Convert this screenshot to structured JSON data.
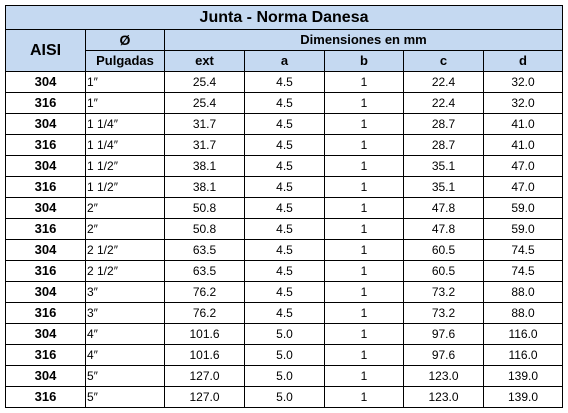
{
  "title": "Junta - Norma Danesa",
  "headers": {
    "aisi": "AISI",
    "phi": "Ø",
    "pulgadas": "Pulgadas",
    "dimensiones": "Dimensiones en mm",
    "ext": "ext",
    "a": "a",
    "b": "b",
    "c": "c",
    "d": "d"
  },
  "colors": {
    "header_background": "#c5d9f1",
    "border": "#000000"
  },
  "rows": [
    {
      "aisi": "304",
      "pulgadas": "1″",
      "ext": "25.4",
      "a": "4.5",
      "b": "1",
      "c": "22.4",
      "d": "32.0"
    },
    {
      "aisi": "316",
      "pulgadas": "1″",
      "ext": "25.4",
      "a": "4.5",
      "b": "1",
      "c": "22.4",
      "d": "32.0"
    },
    {
      "aisi": "304",
      "pulgadas": "1 1/4″",
      "ext": "31.7",
      "a": "4.5",
      "b": "1",
      "c": "28.7",
      "d": "41.0"
    },
    {
      "aisi": "316",
      "pulgadas": "1 1/4″",
      "ext": "31.7",
      "a": "4.5",
      "b": "1",
      "c": "28.7",
      "d": "41.0"
    },
    {
      "aisi": "304",
      "pulgadas": "1 1/2″",
      "ext": "38.1",
      "a": "4.5",
      "b": "1",
      "c": "35.1",
      "d": "47.0"
    },
    {
      "aisi": "316",
      "pulgadas": "1 1/2″",
      "ext": "38.1",
      "a": "4.5",
      "b": "1",
      "c": "35.1",
      "d": "47.0"
    },
    {
      "aisi": "304",
      "pulgadas": "2″",
      "ext": "50.8",
      "a": "4.5",
      "b": "1",
      "c": "47.8",
      "d": "59.0"
    },
    {
      "aisi": "316",
      "pulgadas": "2″",
      "ext": "50.8",
      "a": "4.5",
      "b": "1",
      "c": "47.8",
      "d": "59.0"
    },
    {
      "aisi": "304",
      "pulgadas": "2 1/2″",
      "ext": "63.5",
      "a": "4.5",
      "b": "1",
      "c": "60.5",
      "d": "74.5"
    },
    {
      "aisi": "316",
      "pulgadas": "2 1/2″",
      "ext": "63.5",
      "a": "4.5",
      "b": "1",
      "c": "60.5",
      "d": "74.5"
    },
    {
      "aisi": "304",
      "pulgadas": "3″",
      "ext": "76.2",
      "a": "4.5",
      "b": "1",
      "c": "73.2",
      "d": "88.0"
    },
    {
      "aisi": "316",
      "pulgadas": "3″",
      "ext": "76.2",
      "a": "4.5",
      "b": "1",
      "c": "73.2",
      "d": "88.0"
    },
    {
      "aisi": "304",
      "pulgadas": "4″",
      "ext": "101.6",
      "a": "5.0",
      "b": "1",
      "c": "97.6",
      "d": "116.0"
    },
    {
      "aisi": "316",
      "pulgadas": "4″",
      "ext": "101.6",
      "a": "5.0",
      "b": "1",
      "c": "97.6",
      "d": "116.0"
    },
    {
      "aisi": "304",
      "pulgadas": "5″",
      "ext": "127.0",
      "a": "5.0",
      "b": "1",
      "c": "123.0",
      "d": "139.0"
    },
    {
      "aisi": "316",
      "pulgadas": "5″",
      "ext": "127.0",
      "a": "5.0",
      "b": "1",
      "c": "123.0",
      "d": "139.0"
    }
  ]
}
